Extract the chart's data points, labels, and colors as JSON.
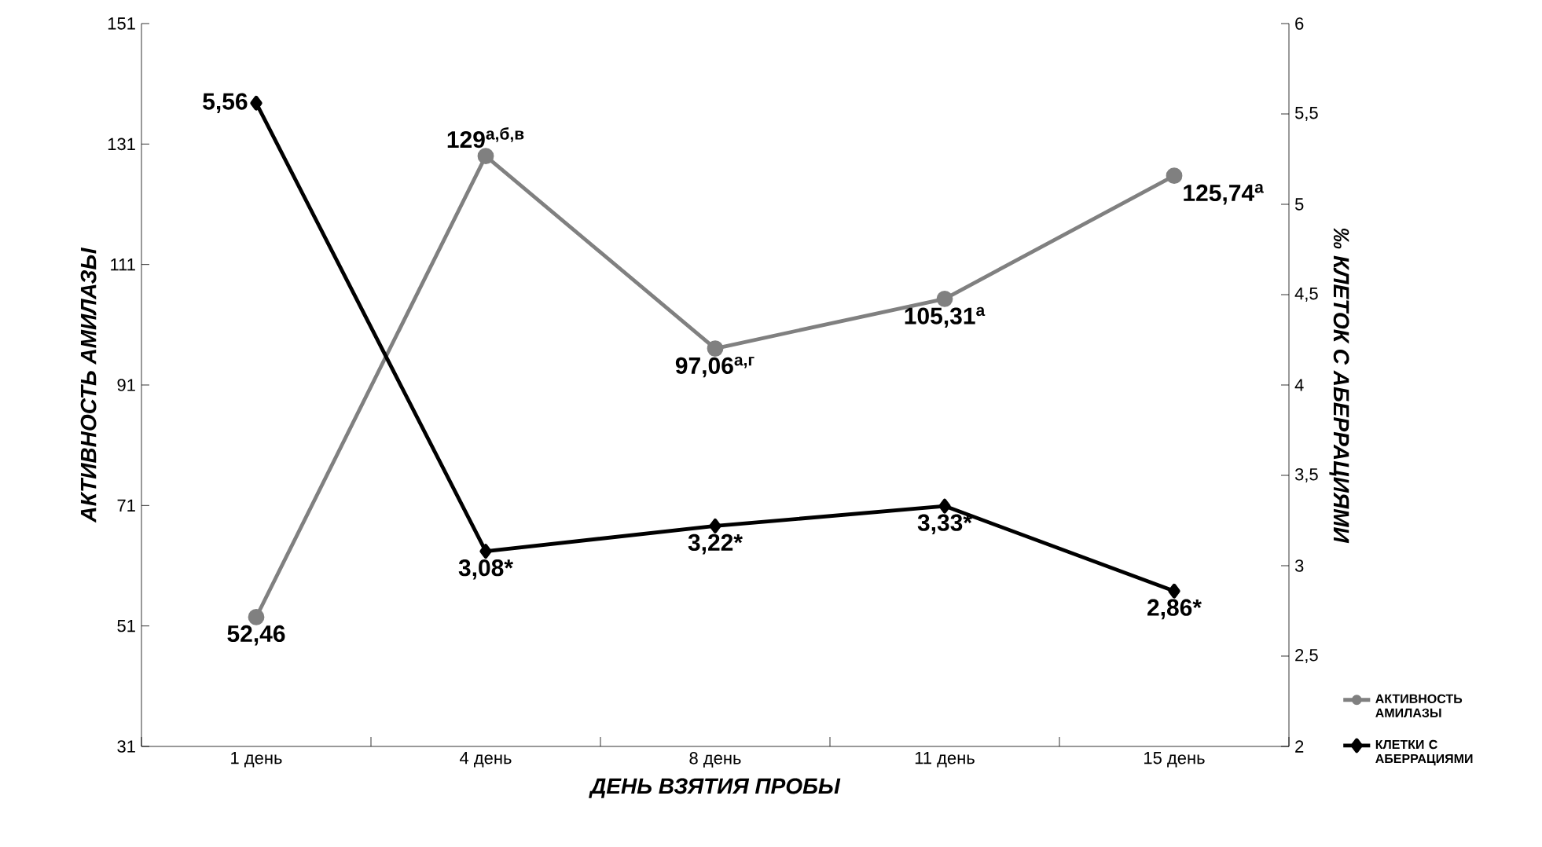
{
  "chart_data": {
    "type": "line",
    "xlabel": "ДЕНЬ ВЗЯТИЯ ПРОБЫ",
    "ylabel": "АКТИВНОСТЬ АМИЛАЗЫ",
    "y2label": "‰ КЛЕТОК С АБЕРРАЦИЯМИ",
    "categories": [
      "1 день",
      "4 день",
      "8 день",
      "11 день",
      "15 день"
    ],
    "series": [
      {
        "name": "АКТИВНОСТЬ АМИЛАЗЫ",
        "color": "#808080",
        "marker": "circle",
        "values": [
          52.46,
          129,
          97.06,
          105.31,
          125.74
        ],
        "value_labels": [
          "52,46",
          "129$^{а,б,в}$",
          "97,06$^{а,г}$",
          "105,31$^{а}$",
          "125,74$^{а}$"
        ]
      },
      {
        "name": "КЛЕТКИ С АБЕРРАЦИЯМИ",
        "color": "#000000",
        "marker": "diamond",
        "axis": "y2",
        "values": [
          5.56,
          3.08,
          3.22,
          3.33,
          2.86
        ],
        "value_labels": [
          "5,56",
          "3,08*",
          "3,22*",
          "3,33*",
          "2,86*"
        ]
      }
    ],
    "ylim": [
      31,
      151
    ],
    "yticks": [
      31,
      51,
      71,
      91,
      111,
      131,
      151
    ],
    "y2lim": [
      2,
      6
    ],
    "y2ticks": [
      2,
      {
        "value": 2.5,
        "label": "2,5"
      },
      3,
      {
        "value": 3.5,
        "label": "3,5"
      },
      4,
      {
        "value": 4.5,
        "label": "4,5"
      },
      5,
      {
        "value": 5.5,
        "label": "5,5"
      },
      6
    ],
    "legend": "bottom right",
    "grid": false,
    "line_style": "solid"
  }
}
